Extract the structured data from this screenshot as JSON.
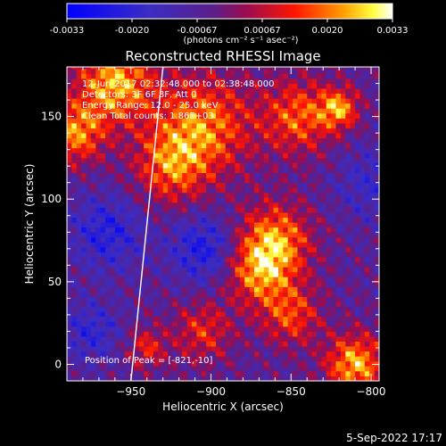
{
  "colorbar": {
    "ticks": [
      "-0.0033",
      "-0.0020",
      "-0.00067",
      "0.00067",
      "0.0020",
      "0.0033"
    ],
    "unit_label": "(photons cm⁻² s⁻¹ asec⁻²)"
  },
  "chart_data": {
    "type": "heatmap",
    "title": "Reconstructed RHESSI Image",
    "xlabel": "Heliocentric X (arcsec)",
    "ylabel": "Heliocentric Y (arcsec)",
    "xlim": [
      -990,
      -795
    ],
    "ylim": [
      -10,
      180
    ],
    "xticks": [
      -950,
      -900,
      -850,
      -800
    ],
    "yticks": [
      0,
      50,
      100,
      150
    ],
    "xtick_labels": [
      "−950",
      "−900",
      "−850",
      "−800"
    ],
    "ytick_labels": [
      "0",
      "50",
      "100",
      "150"
    ],
    "colorbar_range": [
      -0.0033,
      0.0033
    ],
    "colormap": "blue-purple-red-yellow-white",
    "annotations": [
      "12-Jun-2017 02:32:48.000 to 02:38:48.000",
      "Detectors: 3F 6F 8F, Att 0",
      "Energy Range: 12.0 - 25.0 keV",
      "Clean    Total counts: 1.86E+03"
    ],
    "peak_label": "Position of Peak = [-821,-10]",
    "peak_position": [
      -821,
      -10
    ],
    "limb_line": [
      [
        -950,
        -10
      ],
      [
        -930,
        180
      ]
    ]
  },
  "footer": {
    "date": "5-Sep-2022 17:17"
  }
}
